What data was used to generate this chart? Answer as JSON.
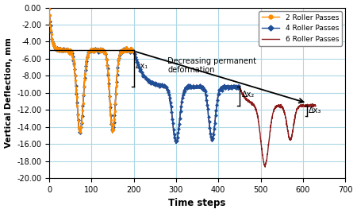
{
  "xlabel": "Time steps",
  "ylabel": "Vertical Deflection, mm",
  "xlim": [
    0,
    700
  ],
  "ylim": [
    -20.0,
    0.0
  ],
  "yticks": [
    0.0,
    -2.0,
    -4.0,
    -6.0,
    -8.0,
    -10.0,
    -12.0,
    -14.0,
    -16.0,
    -18.0,
    -20.0
  ],
  "xticks": [
    0,
    100,
    200,
    300,
    400,
    500,
    600,
    700
  ],
  "color_2pass": "#FF8C00",
  "color_4pass": "#1F4E97",
  "color_6pass": "#8B1A1A",
  "grid_color": "#ADD8E6",
  "background_color": "#FFFFFF",
  "legend_labels": [
    "2 Roller Passes",
    "4 Roller Passes",
    "6 Roller Passes"
  ],
  "annotation_text": "Decreasing permanent\ndeformation",
  "dx_labels": [
    "Δx₁",
    "Δx₂",
    "Δx₃"
  ],
  "base_level": -5.0,
  "perm_2pass": -5.0,
  "perm_4pass": -9.3,
  "perm_6pass": -11.5,
  "bracket1_x": 200,
  "bracket2_x": 450,
  "bracket3_x": 610
}
